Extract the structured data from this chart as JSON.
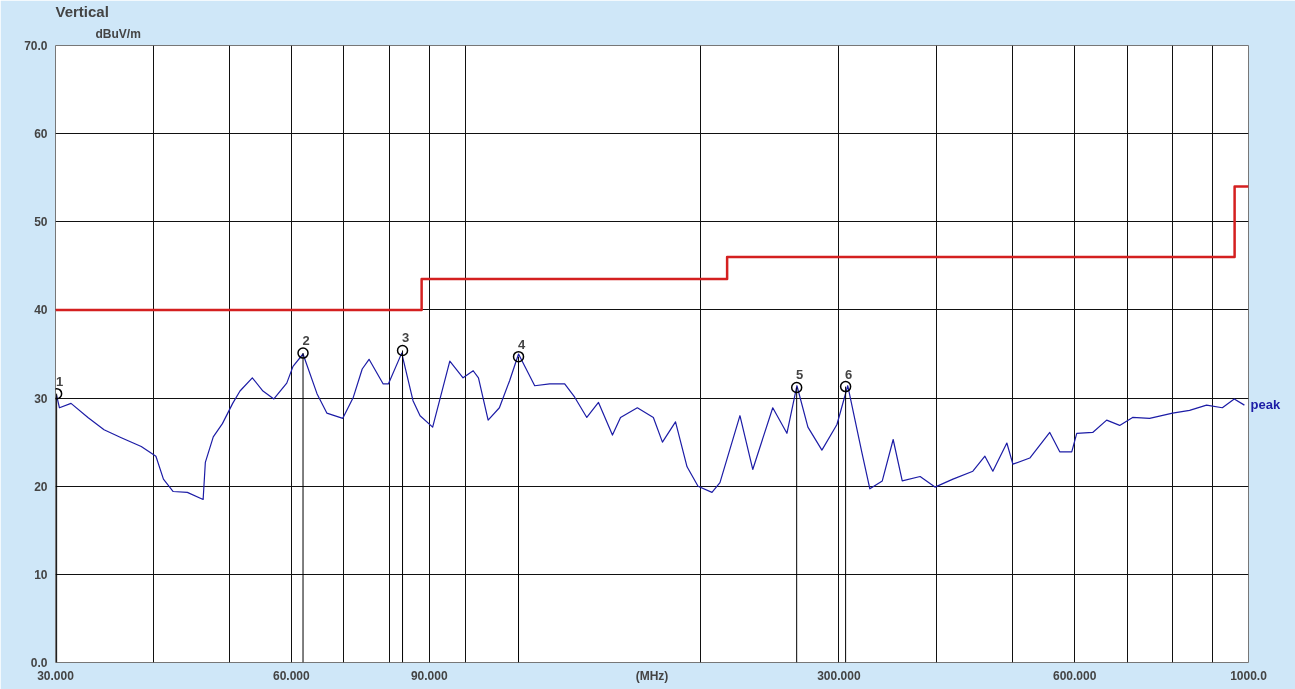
{
  "chart_data": {
    "type": "line",
    "title": "Vertical",
    "xlabel": "(MHz)",
    "ylabel": "dBuV/m",
    "log": "x",
    "xlim": [
      30,
      1000
    ],
    "ylim": [
      0,
      70
    ],
    "xticks": [
      {
        "value": 30,
        "label": "30.000"
      },
      {
        "value": 40,
        "label": null
      },
      {
        "value": 50,
        "label": null
      },
      {
        "value": 60,
        "label": "60.000"
      },
      {
        "value": 70,
        "label": null
      },
      {
        "value": 80,
        "label": null
      },
      {
        "value": 90,
        "label": "90.000"
      },
      {
        "value": 100,
        "label": null
      },
      {
        "value": 200,
        "label": null
      },
      {
        "value": 300,
        "label": "300.000"
      },
      {
        "value": 400,
        "label": null
      },
      {
        "value": 500,
        "label": null
      },
      {
        "value": 600,
        "label": "600.000"
      },
      {
        "value": 700,
        "label": null
      },
      {
        "value": 800,
        "label": null
      },
      {
        "value": 900,
        "label": null
      },
      {
        "value": 1000,
        "label": "1000.0"
      }
    ],
    "yticks": [
      {
        "value": 0,
        "label": "0.0"
      },
      10,
      20,
      30,
      40,
      50,
      60,
      {
        "value": 70,
        "label": "70.0"
      }
    ],
    "grid": true,
    "legend": false,
    "series": [
      {
        "name": "peak",
        "type": "line",
        "color": "#1c1ca6",
        "x": [
          30.1,
          30.35,
          31.4,
          33.0,
          34.6,
          36.4,
          38.6,
          40.3,
          41.2,
          42.4,
          44.2,
          46.3,
          46.6,
          47.7,
          49.0,
          50.5,
          51.6,
          53.5,
          55.2,
          57.0,
          59.2,
          60.3,
          62.1,
          64.7,
          66.6,
          69.8,
          72.0,
          73.9,
          75.4,
          78.6,
          79.8,
          83.0,
          85.8,
          87.6,
          90.9,
          95.6,
          99.4,
          102.4,
          104.0,
          107.0,
          110.6,
          114.0,
          117.0,
          122.7,
          128.2,
          134.0,
          138.0,
          143.0,
          148.0,
          154.2,
          157.9,
          165.9,
          173.9,
          178.6,
          185.6,
          192.0,
          198.3,
          206.6,
          211.5,
          224.3,
          232.9,
          247.0,
          257.5,
          265.2,
          273.9,
          285.4,
          298.3,
          307.9,
          321,
          328.6,
          340.8,
          351.9,
          361.4,
          380.9,
          397.9,
          419.5,
          444.8,
          460.8,
          471.7,
          491.5,
          500.3,
          525.8,
          557.6,
          574.2,
          594.8,
          603.6,
          632.6,
          659.1,
          684.8,
          711.3,
          747.8,
          800,
          841,
          884,
          926,
          959,
          988
        ],
        "values": [
          30.3,
          28.9,
          29.4,
          27.8,
          26.4,
          25.5,
          24.5,
          23.4,
          20.8,
          19.4,
          19.3,
          18.5,
          22.7,
          25.6,
          27.1,
          29.4,
          30.8,
          32.3,
          30.8,
          29.9,
          31.7,
          33.6,
          35.0,
          30.5,
          28.3,
          27.7,
          30.1,
          33.3,
          34.4,
          31.6,
          31.6,
          35.1,
          29.7,
          28.0,
          26.7,
          34.2,
          32.3,
          33.1,
          32.3,
          27.5,
          28.9,
          32.0,
          35.0,
          31.4,
          31.6,
          31.6,
          30.1,
          27.8,
          29.5,
          25.8,
          27.8,
          28.9,
          27.8,
          25.0,
          27.3,
          22.2,
          20.0,
          19.3,
          20.4,
          28.0,
          21.9,
          28.9,
          26.0,
          31.4,
          26.7,
          24.1,
          27.0,
          31.4,
          23.8,
          19.7,
          20.6,
          25.3,
          20.6,
          21.1,
          19.9,
          20.8,
          21.7,
          23.4,
          21.7,
          24.9,
          22.5,
          23.2,
          26.1,
          23.9,
          23.9,
          26.0,
          26.1,
          27.5,
          26.9,
          27.8,
          27.7,
          28.3,
          28.6,
          29.2,
          28.9,
          29.9,
          29.2
        ]
      },
      {
        "type": "step",
        "color": "#d42020",
        "x": [
          30,
          88,
          216,
          960,
          1000
        ],
        "values": [
          40,
          43.5,
          46,
          54,
          54
        ]
      },
      {
        "type": "lollipop",
        "color": "#000000",
        "marker": "circle",
        "x": [
          30.1,
          62.1,
          83.2,
          117,
          265,
          306
        ],
        "values": [
          30.5,
          35.1,
          35.4,
          34.7,
          31.2,
          31.3
        ]
      }
    ],
    "annotations": [
      {
        "text": "1",
        "x": 30.1,
        "y": 30.5
      },
      {
        "text": "2",
        "x": 62.1,
        "y": 35.1
      },
      {
        "text": "3",
        "x": 83.2,
        "y": 35.4
      },
      {
        "text": "4",
        "x": 117,
        "y": 34.7
      },
      {
        "text": "5",
        "x": 265,
        "y": 31.2
      },
      {
        "text": "6",
        "x": 306,
        "y": 31.3
      }
    ]
  }
}
